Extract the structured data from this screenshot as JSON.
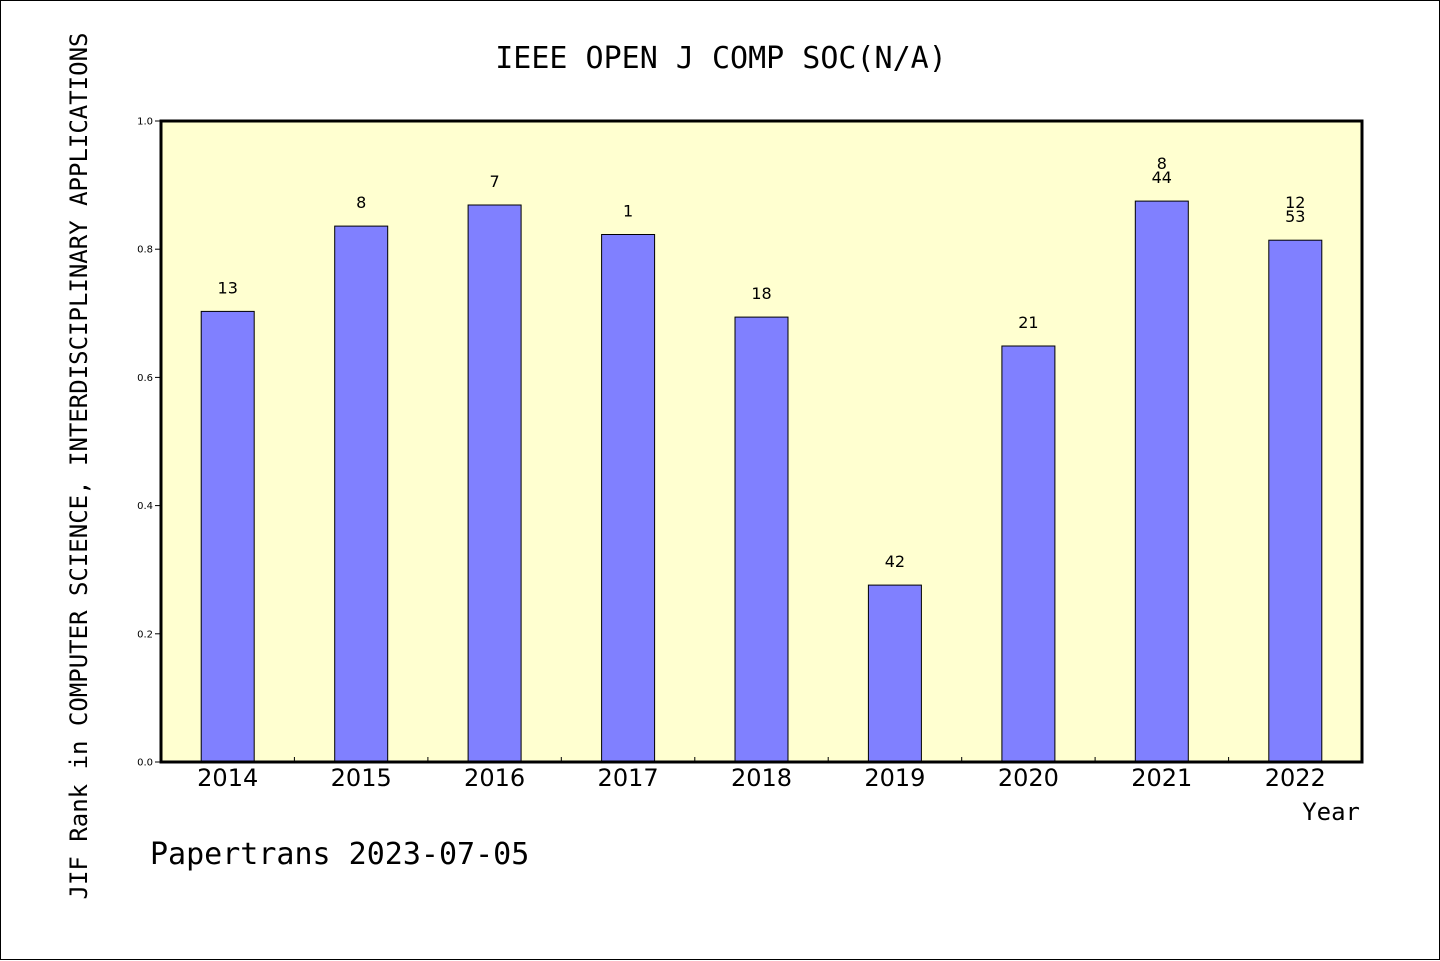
{
  "chart_data": {
    "type": "bar",
    "title": "IEEE OPEN J COMP SOC(N/A)",
    "xlabel": "Year",
    "ylabel": "JIF Rank in COMPUTER SCIENCE, INTERDISCIPLINARY APPLICATIONS",
    "categories": [
      "2014",
      "2015",
      "2016",
      "2017",
      "2018",
      "2019",
      "2020",
      "2021",
      "2022"
    ],
    "values": [
      0.703,
      0.836,
      0.869,
      0.823,
      0.694,
      0.276,
      0.649,
      0.875,
      0.814
    ],
    "data_labels": [
      [
        "13"
      ],
      [
        "8"
      ],
      [
        "7"
      ],
      [
        "1"
      ],
      [
        "18"
      ],
      [
        "42"
      ],
      [
        "21"
      ],
      [
        "8",
        "44"
      ],
      [
        "12",
        "53"
      ]
    ],
    "ylim": [
      0.0,
      1.0
    ],
    "yticks": [
      "0.0",
      "0.2",
      "0.4",
      "0.6",
      "0.8",
      "1.0"
    ],
    "grid": false,
    "colors": {
      "bar_fill": "#8080ff",
      "plot_background": "#ffffd0",
      "axis": "#000000"
    }
  },
  "footer": {
    "text": "Papertrans 2023-07-05"
  }
}
